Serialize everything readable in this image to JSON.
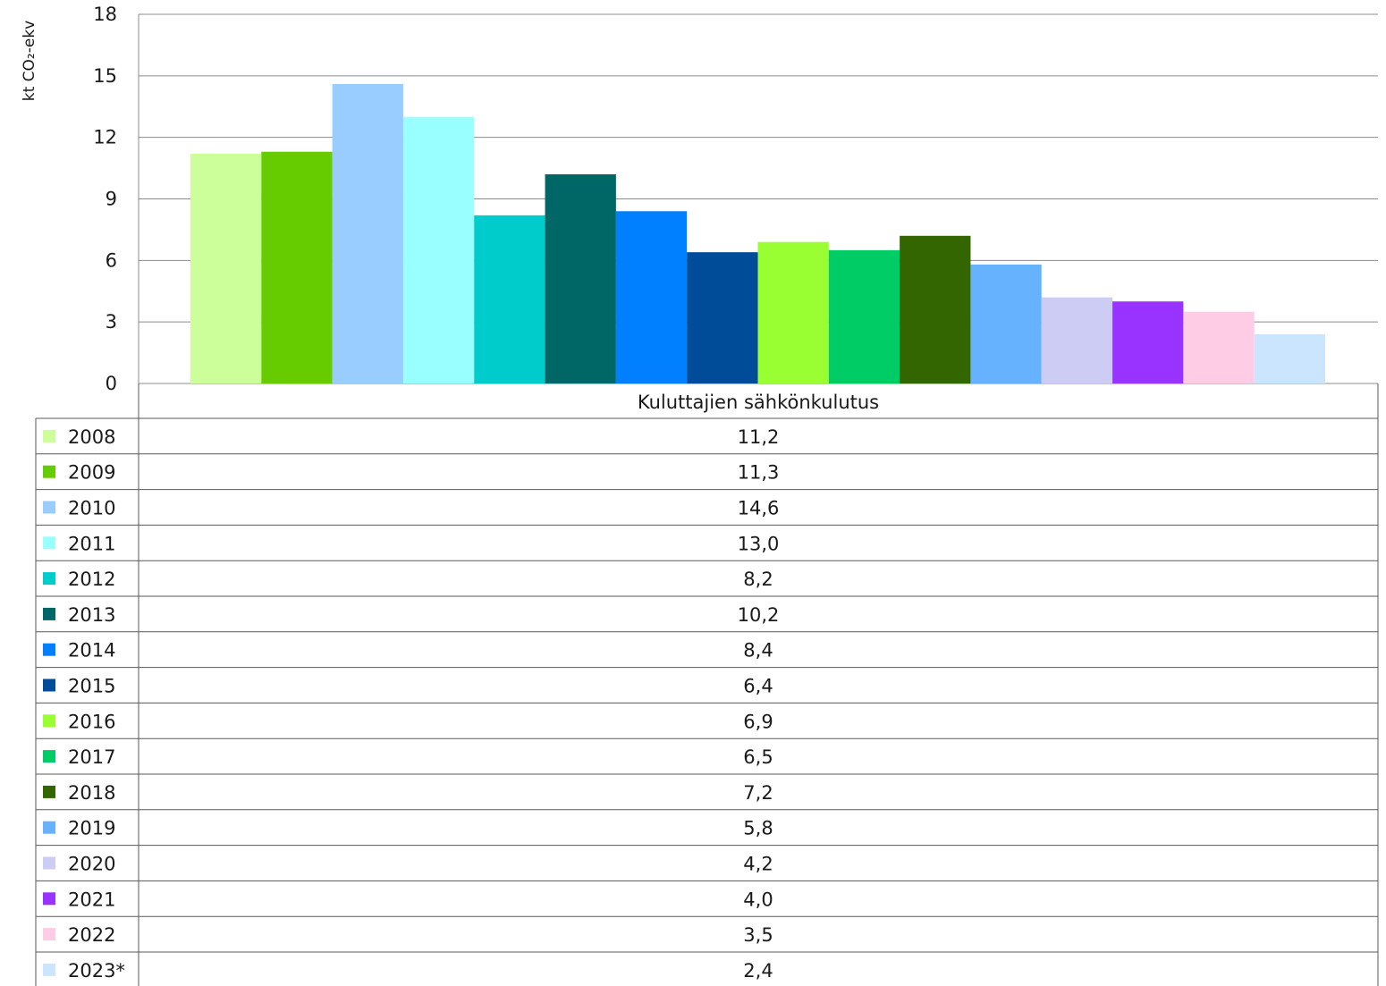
{
  "chart_data": {
    "type": "bar",
    "categories": [
      "Kuluttajien sähkönkulutus"
    ],
    "series": [
      {
        "name": "2008",
        "values": [
          11.2
        ],
        "value_label": "11,2",
        "color": "#ccff99"
      },
      {
        "name": "2009",
        "values": [
          11.3
        ],
        "value_label": "11,3",
        "color": "#66cc00"
      },
      {
        "name": "2010",
        "values": [
          14.6
        ],
        "value_label": "14,6",
        "color": "#99ccff"
      },
      {
        "name": "2011",
        "values": [
          13.0
        ],
        "value_label": "13,0",
        "color": "#99ffff"
      },
      {
        "name": "2012",
        "values": [
          8.2
        ],
        "value_label": "8,2",
        "color": "#00cccc"
      },
      {
        "name": "2013",
        "values": [
          10.2
        ],
        "value_label": "10,2",
        "color": "#006666"
      },
      {
        "name": "2014",
        "values": [
          8.4
        ],
        "value_label": "8,4",
        "color": "#0080ff"
      },
      {
        "name": "2015",
        "values": [
          6.4
        ],
        "value_label": "6,4",
        "color": "#004c99"
      },
      {
        "name": "2016",
        "values": [
          6.9
        ],
        "value_label": "6,9",
        "color": "#99ff33"
      },
      {
        "name": "2017",
        "values": [
          6.5
        ],
        "value_label": "6,5",
        "color": "#00cc66"
      },
      {
        "name": "2018",
        "values": [
          7.2
        ],
        "value_label": "7,2",
        "color": "#336600"
      },
      {
        "name": "2019",
        "values": [
          5.8
        ],
        "value_label": "5,8",
        "color": "#66b2ff"
      },
      {
        "name": "2020",
        "values": [
          4.2
        ],
        "value_label": "4,2",
        "color": "#ccccf5"
      },
      {
        "name": "2021",
        "values": [
          4.0
        ],
        "value_label": "4,0",
        "color": "#9933ff"
      },
      {
        "name": "2022",
        "values": [
          3.5
        ],
        "value_label": "3,5",
        "color": "#ffccE5"
      },
      {
        "name": "2023*",
        "values": [
          2.4
        ],
        "value_label": "2,4",
        "color": "#cce5ff"
      }
    ],
    "ylabel": "kt CO₂-ekv",
    "ylim": [
      0,
      18
    ],
    "yticks": [
      0,
      3,
      6,
      9,
      12,
      15,
      18
    ],
    "ytick_labels": [
      "0",
      "3",
      "6",
      "9",
      "12",
      "15",
      "18"
    ],
    "grid": true,
    "legend": "data-table-below"
  }
}
